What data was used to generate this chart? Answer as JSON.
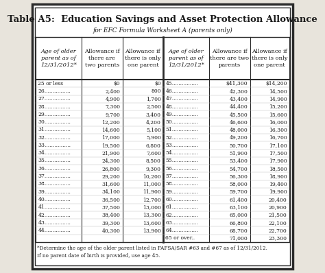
{
  "title": "Table A5:  Education Savings and Asset Protection Allowance",
  "subtitle": "for EFC Formula Worksheet A (parents only)",
  "col_headers": [
    "Age of older\nparent as of\n12/31/2012*",
    "Allowance if\nthere are\ntwo parents",
    "Allowance if\nthere is only\none parent",
    "Age of older\nparent as of\n12/31/2012*",
    "Allowance if\nthere are two\nparents",
    "Allowance if\nthere is only\none parent"
  ],
  "left_data": [
    [
      "25 or less",
      "$0",
      "$0"
    ],
    [
      "26................",
      "2,400",
      "800"
    ],
    [
      "27................",
      "4,900",
      "1,700"
    ],
    [
      "28................",
      "7,300",
      "2,500"
    ],
    [
      "29................",
      "9,700",
      "3,400"
    ],
    [
      "30................",
      "12,200",
      "4,200"
    ],
    [
      "31................",
      "14,600",
      "5,100"
    ],
    [
      "32................",
      "17,000",
      "5,900"
    ],
    [
      "33................",
      "19,500",
      "6,800"
    ],
    [
      "34................",
      "21,900",
      "7,600"
    ],
    [
      "35................",
      "24,300",
      "8,500"
    ],
    [
      "36................",
      "26,800",
      "9,300"
    ],
    [
      "37................",
      "29,200",
      "10,200"
    ],
    [
      "38................",
      "31,600",
      "11,000"
    ],
    [
      "39................",
      "34,100",
      "11,900"
    ],
    [
      "40................",
      "36,500",
      "12,700"
    ],
    [
      "41................",
      "37,500",
      "13,000"
    ],
    [
      "42................",
      "38,400",
      "13,300"
    ],
    [
      "43................",
      "39,300",
      "13,600"
    ],
    [
      "44................",
      "40,300",
      "13,900"
    ]
  ],
  "right_data": [
    [
      "45................",
      "$41,300",
      "$14,200"
    ],
    [
      "46................",
      "42,300",
      "14,500"
    ],
    [
      "47................",
      "43,400",
      "14,900"
    ],
    [
      "48................",
      "44,400",
      "15,200"
    ],
    [
      "49................",
      "45,500",
      "15,600"
    ],
    [
      "50................",
      "46,600",
      "16,000"
    ],
    [
      "51................",
      "48,000",
      "16,300"
    ],
    [
      "52................",
      "49,200",
      "16,700"
    ],
    [
      "53................",
      "50,700",
      "17,100"
    ],
    [
      "54................",
      "51,900",
      "17,500"
    ],
    [
      "55................",
      "53,400",
      "17,900"
    ],
    [
      "56................",
      "54,700",
      "18,500"
    ],
    [
      "57................",
      "56,300",
      "18,900"
    ],
    [
      "58................",
      "58,000",
      "19,400"
    ],
    [
      "59................",
      "59,700",
      "19,900"
    ],
    [
      "60................",
      "61,400",
      "20,400"
    ],
    [
      "61................",
      "63,100",
      "20,900"
    ],
    [
      "62................",
      "65,000",
      "21,500"
    ],
    [
      "63................",
      "66,800",
      "22,100"
    ],
    [
      "64................",
      "68,700",
      "22,700"
    ],
    [
      "65 or over..",
      "71,000",
      "23,300"
    ]
  ],
  "footnote1": "*Determine the age of the older parent listed in FAFSA/SAR #63 and #67 as of 12/31/2012.",
  "footnote2": "If no parent date of birth is provided, use age 45.",
  "bg_color": "#ffffff",
  "outer_bg": "#e8e4dc",
  "header_bg": "#ffffff",
  "border_color": "#2a2a2a",
  "text_color": "#1a1a1a",
  "col_italic": [
    true,
    false,
    false,
    true,
    false,
    false
  ]
}
